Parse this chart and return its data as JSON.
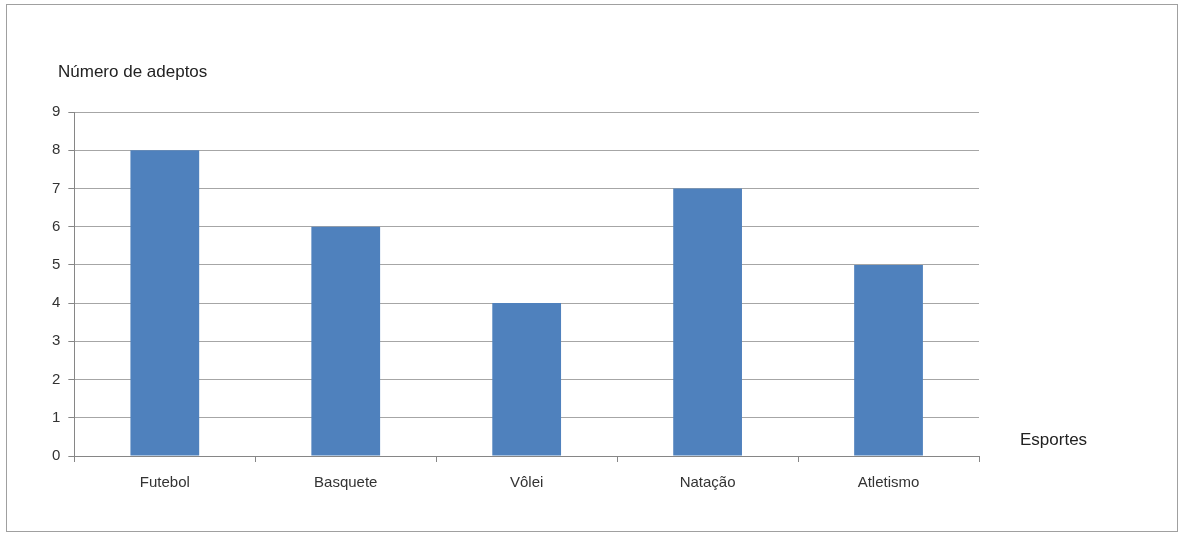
{
  "chart_data": {
    "type": "bar",
    "xlabel": "Esportes",
    "ylabel": "Número de adeptos",
    "categories": [
      "Futebol",
      "Basquete",
      "Vôlei",
      "Natação",
      "Atletismo"
    ],
    "values": [
      8,
      6,
      4,
      7,
      5
    ],
    "color": "#4f81bd",
    "ylim": [
      0,
      9
    ],
    "yticks": [
      0,
      1,
      2,
      3,
      4,
      5,
      6,
      7,
      8,
      9
    ],
    "grid": "y"
  }
}
